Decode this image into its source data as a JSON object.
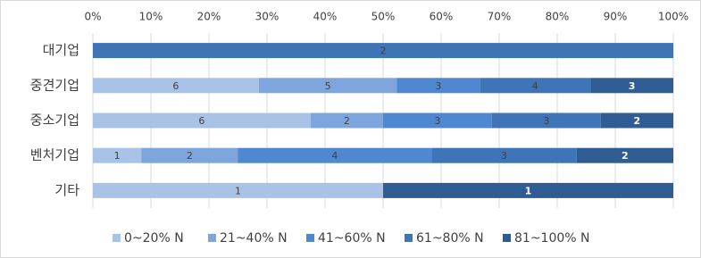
{
  "chart_data": {
    "type": "bar",
    "orientation": "horizontal",
    "stacked": "percent",
    "categories": [
      "대기업",
      "중견기업",
      "중소기업",
      "벤처기업",
      "기타"
    ],
    "series": [
      {
        "name": "0~20% N",
        "color": "#a9c3e6",
        "values": [
          null,
          6,
          6,
          1,
          1
        ]
      },
      {
        "name": "21~40% N",
        "color": "#7ea6dc",
        "values": [
          null,
          5,
          2,
          2,
          null
        ]
      },
      {
        "name": "41~60% N",
        "color": "#4f87d0",
        "values": [
          null,
          3,
          3,
          4,
          null
        ]
      },
      {
        "name": "61~80% N",
        "color": "#3f74b6",
        "values": [
          2,
          4,
          3,
          3,
          null
        ]
      },
      {
        "name": "81~100% N",
        "color": "#2f5c92",
        "values": [
          null,
          3,
          2,
          2,
          1
        ]
      }
    ],
    "xlim": [
      0,
      100
    ],
    "xticks": [
      {
        "value": 0,
        "label": "0%"
      },
      {
        "value": 10,
        "label": "10%"
      },
      {
        "value": 20,
        "label": "20%"
      },
      {
        "value": 30,
        "label": "30%"
      },
      {
        "value": 40,
        "label": "40%"
      },
      {
        "value": 50,
        "label": "50%"
      },
      {
        "value": 60,
        "label": "60%"
      },
      {
        "value": 70,
        "label": "70%"
      },
      {
        "value": 80,
        "label": "80%"
      },
      {
        "value": 90,
        "label": "90%"
      },
      {
        "value": 100,
        "label": "100%"
      }
    ],
    "grid": true,
    "legend": "bottom"
  }
}
